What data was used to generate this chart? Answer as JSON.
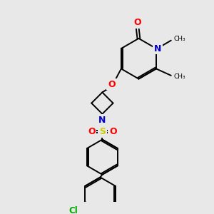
{
  "bg_color": "#e8e8e8",
  "figsize": [
    3.0,
    3.0
  ],
  "dpi": 100,
  "atom_colors": {
    "O": "#ff0000",
    "N": "#0000cc",
    "S": "#cccc00",
    "Cl": "#00aa00",
    "C": "#000000"
  }
}
